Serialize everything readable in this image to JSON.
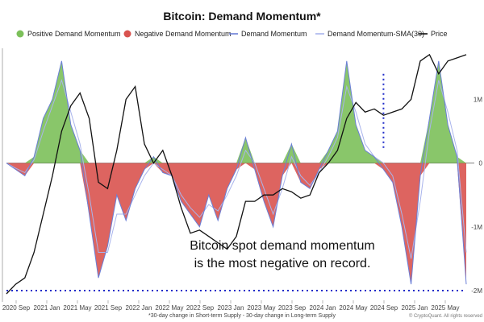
{
  "chart_data": {
    "type": "area",
    "title": "Bitcoin: Demand Momentum*",
    "legend": [
      {
        "label": "Positive Demand Momentum",
        "color": "#7cc05a",
        "kind": "dot"
      },
      {
        "label": "Negative Demand Momentum",
        "color": "#d9534f",
        "kind": "dot"
      },
      {
        "label": "Demand Momentum",
        "color": "#6b7fd7",
        "kind": "line"
      },
      {
        "label": "Demand Momentum-SMA(30)",
        "color": "#a9b4ec",
        "kind": "line"
      },
      {
        "label": "Price",
        "color": "#111111",
        "kind": "line"
      }
    ],
    "legend_position": "top",
    "x_ticks": [
      "2020 Sep",
      "2021 Jan",
      "2021 May",
      "2021 Sep",
      "2022 Jan",
      "2022 May",
      "2022 Sep",
      "2023 Jan",
      "2023 May",
      "2023 Sep",
      "2024 Jan",
      "2024 May",
      "2024 Sep",
      "2025 Jan",
      "2025 May"
    ],
    "y_ticks": [
      "1M",
      "0",
      "-1M",
      "-2M"
    ],
    "y_tick_values": [
      1000000,
      0,
      -1000000,
      -2000000
    ],
    "ylim": [
      -2050000,
      1800000
    ],
    "x": [
      2020.5,
      2020.6,
      2020.7,
      2020.8,
      2020.9,
      2021.0,
      2021.1,
      2021.2,
      2021.3,
      2021.4,
      2021.5,
      2021.6,
      2021.7,
      2021.8,
      2021.9,
      2022.0,
      2022.1,
      2022.2,
      2022.3,
      2022.4,
      2022.5,
      2022.6,
      2022.7,
      2022.8,
      2022.9,
      2023.0,
      2023.1,
      2023.2,
      2023.3,
      2023.4,
      2023.5,
      2023.6,
      2023.7,
      2023.8,
      2023.9,
      2024.0,
      2024.1,
      2024.2,
      2024.3,
      2024.4,
      2024.5,
      2024.6,
      2024.7,
      2024.8,
      2024.9,
      2025.0,
      2025.1,
      2025.2,
      2025.3,
      2025.4,
      2025.5
    ],
    "series": [
      {
        "name": "Demand Momentum",
        "values": [
          0,
          -100000,
          -200000,
          100000,
          700000,
          1000000,
          1600000,
          600000,
          200000,
          -800000,
          -1800000,
          -1300000,
          -500000,
          -900000,
          -400000,
          -100000,
          100000,
          -150000,
          -200000,
          -600000,
          -800000,
          -1000000,
          -500000,
          -900000,
          -400000,
          -100000,
          400000,
          -100000,
          -600000,
          -1000000,
          -200000,
          300000,
          -300000,
          -400000,
          -100000,
          200000,
          500000,
          1600000,
          600000,
          200000,
          100000,
          -100000,
          -300000,
          -1000000,
          -1900000,
          -200000,
          700000,
          1600000,
          600000,
          100000,
          -1900000
        ]
      },
      {
        "name": "Demand Momentum-SMA(30)",
        "values": [
          0,
          -80000,
          -150000,
          50000,
          500000,
          900000,
          1300000,
          800000,
          300000,
          -500000,
          -1400000,
          -1400000,
          -800000,
          -800000,
          -500000,
          -200000,
          0,
          -100000,
          -200000,
          -500000,
          -700000,
          -850000,
          -650000,
          -750000,
          -500000,
          -200000,
          200000,
          0,
          -400000,
          -800000,
          -400000,
          100000,
          -200000,
          -350000,
          -150000,
          100000,
          400000,
          1200000,
          800000,
          300000,
          100000,
          0,
          -200000,
          -800000,
          -1500000,
          -600000,
          500000,
          1300000,
          800000,
          200000,
          -1400000
        ]
      },
      {
        "name": "Price",
        "values": [
          -2050000,
          -1900000,
          -1800000,
          -1400000,
          -800000,
          -200000,
          500000,
          900000,
          1100000,
          700000,
          -300000,
          -400000,
          200000,
          1000000,
          1200000,
          300000,
          0,
          200000,
          -200000,
          -700000,
          -1100000,
          -1050000,
          -1150000,
          -1250000,
          -1350000,
          -1150000,
          -600000,
          -600000,
          -500000,
          -500000,
          -400000,
          -450000,
          -550000,
          -500000,
          -150000,
          0,
          200000,
          700000,
          950000,
          800000,
          850000,
          750000,
          800000,
          850000,
          1000000,
          1600000,
          1700000,
          1400000,
          1600000,
          1650000,
          1700000
        ]
      }
    ],
    "annotation": "Bitcoin spot demand momentum is the most negative on record.",
    "annotation_lines": [
      "Bitcoin spot demand momentum",
      "is the most negative on record."
    ],
    "footnote": "*30-day change in Short-term Supply - 30-day change in Long-term Supply",
    "credit": "© CryptoQuant. All rights reserved",
    "record_low_level": -2000000,
    "grid": false
  }
}
